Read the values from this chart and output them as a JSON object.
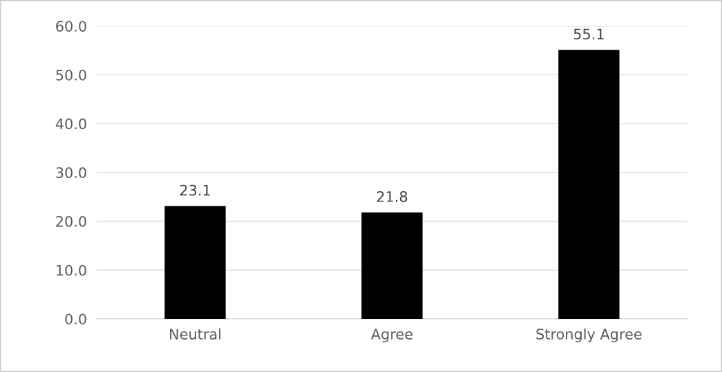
{
  "chart_data": {
    "type": "bar",
    "categories": [
      "Neutral",
      "Agree",
      "Strongly Agree"
    ],
    "values": [
      23.1,
      21.8,
      55.1
    ],
    "color": "#000000",
    "ylim": [
      0,
      60
    ],
    "yticks": [
      {
        "value": 0,
        "label": "0.0"
      },
      {
        "value": 10,
        "label": "10.0"
      },
      {
        "value": 20,
        "label": "20.0"
      },
      {
        "value": 30,
        "label": "30.0"
      },
      {
        "value": 40,
        "label": "40.0"
      },
      {
        "value": 50,
        "label": "50.0"
      },
      {
        "value": 60,
        "label": "60.0"
      }
    ],
    "grid": "y",
    "data_labels": true
  }
}
